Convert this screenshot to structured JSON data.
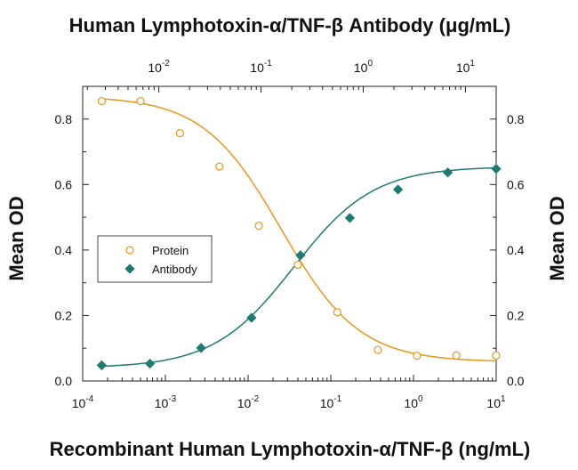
{
  "chart_data": {
    "type": "scatter",
    "title": "Human Lymphotoxin-α/TNF-β Antibody (μg/mL)",
    "xlabel": "Recombinant Human Lymphotoxin-α/TNF-β (ng/mL)",
    "ylabel": "Mean OD",
    "y2label": "Mean OD",
    "x_scale": "log",
    "xlim": [
      0.0001,
      10
    ],
    "ylim": [
      0,
      0.9
    ],
    "x_ticks": [
      {
        "base": "10",
        "exp": "-4",
        "value": 0.0001
      },
      {
        "base": "10",
        "exp": "-3",
        "value": 0.001
      },
      {
        "base": "10",
        "exp": "-2",
        "value": 0.01
      },
      {
        "base": "10",
        "exp": "-1",
        "value": 0.1
      },
      {
        "base": "10",
        "exp": "0",
        "value": 1
      },
      {
        "base": "10",
        "exp": "1",
        "value": 10
      }
    ],
    "x2_scale": "log",
    "x2lim": [
      0.0018,
      20
    ],
    "x2_ticks": [
      {
        "base": "10",
        "exp": "-2",
        "value": 0.01
      },
      {
        "base": "10",
        "exp": "-1",
        "value": 0.1
      },
      {
        "base": "10",
        "exp": "0",
        "value": 1
      },
      {
        "base": "10",
        "exp": "1",
        "value": 10
      }
    ],
    "y_ticks": [
      "0.0",
      "0.2",
      "0.4",
      "0.6",
      "0.8"
    ],
    "y_tick_values": [
      0,
      0.2,
      0.4,
      0.6,
      0.8
    ],
    "legend_position": "center-left",
    "series": [
      {
        "name": "Protein",
        "marker": "open-circle",
        "color": "#e8961e",
        "x": [
          0.00017,
          0.0005,
          0.0015,
          0.0045,
          0.0135,
          0.04,
          0.12,
          0.37,
          1.1,
          3.3,
          10
        ],
        "y": [
          0.855,
          0.855,
          0.757,
          0.655,
          0.474,
          0.355,
          0.21,
          0.095,
          0.077,
          0.078,
          0.078
        ],
        "fit": {
          "top": 0.87,
          "bottom": 0.058,
          "logEC50": -1.6,
          "hill": 0.92
        }
      },
      {
        "name": "Antibody",
        "marker": "filled-diamond",
        "color": "#1f7a72",
        "x": [
          0.00017,
          0.00065,
          0.0027,
          0.011,
          0.043,
          0.17,
          0.65,
          2.6,
          10
        ],
        "y": [
          0.048,
          0.053,
          0.101,
          0.193,
          0.384,
          0.498,
          0.585,
          0.637,
          0.648
        ],
        "fit": {
          "top": 0.655,
          "bottom": 0.04,
          "logEC50": -1.45,
          "hill": 0.9
        }
      }
    ]
  }
}
